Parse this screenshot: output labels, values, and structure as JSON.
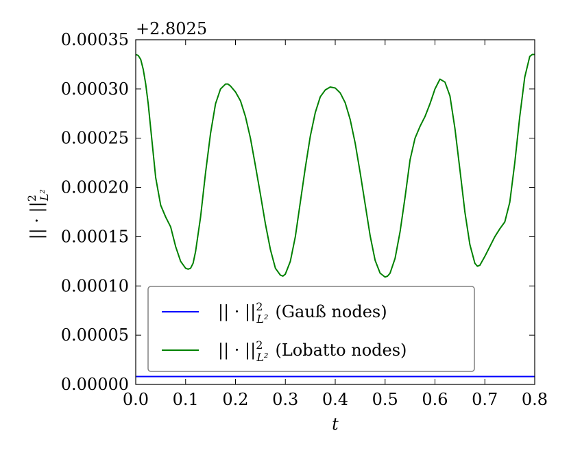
{
  "chart_data": {
    "type": "line",
    "title": "",
    "xlabel": "t",
    "ylabel": "||·||²_{L²}",
    "y_offset_label": "+2.8025",
    "xlim": [
      0.0,
      0.8
    ],
    "ylim": [
      0.0,
      0.00035
    ],
    "x_ticks": [
      0.0,
      0.1,
      0.2,
      0.3,
      0.4,
      0.5,
      0.6,
      0.7,
      0.8
    ],
    "x_tick_labels": [
      "0.0",
      "0.1",
      "0.2",
      "0.3",
      "0.4",
      "0.5",
      "0.6",
      "0.7",
      "0.8"
    ],
    "y_ticks": [
      0.0,
      5e-05,
      0.0001,
      0.00015,
      0.0002,
      0.00025,
      0.0003,
      0.00035
    ],
    "y_tick_labels": [
      "0.00000",
      "0.00005",
      "0.00010",
      "0.00015",
      "0.00020",
      "0.00025",
      "0.00030",
      "0.00035"
    ],
    "grid": false,
    "legend_position": "lower-center",
    "series": [
      {
        "name": "||·||²_{L²} (Gauß nodes)",
        "color": "#0000ff",
        "x": [
          0.0,
          0.1,
          0.2,
          0.3,
          0.4,
          0.5,
          0.6,
          0.7,
          0.8
        ],
        "y": [
          8e-06,
          8e-06,
          8e-06,
          8e-06,
          8e-06,
          8e-06,
          8e-06,
          8e-06,
          8e-06
        ]
      },
      {
        "name": "||·||²_{L²} (Lobatto nodes)",
        "color": "#008000",
        "x": [
          0.0,
          0.005,
          0.01,
          0.015,
          0.02,
          0.025,
          0.03,
          0.04,
          0.05,
          0.06,
          0.07,
          0.08,
          0.09,
          0.1,
          0.105,
          0.11,
          0.115,
          0.12,
          0.13,
          0.14,
          0.15,
          0.16,
          0.17,
          0.18,
          0.185,
          0.19,
          0.2,
          0.21,
          0.22,
          0.23,
          0.24,
          0.25,
          0.26,
          0.27,
          0.28,
          0.29,
          0.295,
          0.3,
          0.31,
          0.32,
          0.33,
          0.34,
          0.35,
          0.36,
          0.37,
          0.38,
          0.39,
          0.4,
          0.41,
          0.42,
          0.43,
          0.44,
          0.45,
          0.46,
          0.47,
          0.48,
          0.49,
          0.5,
          0.505,
          0.51,
          0.52,
          0.53,
          0.54,
          0.55,
          0.56,
          0.57,
          0.58,
          0.59,
          0.6,
          0.61,
          0.62,
          0.63,
          0.64,
          0.65,
          0.66,
          0.67,
          0.68,
          0.685,
          0.69,
          0.7,
          0.71,
          0.72,
          0.73,
          0.74,
          0.75,
          0.76,
          0.77,
          0.78,
          0.79,
          0.795,
          0.8
        ],
        "y": [
          0.000335,
          0.000334,
          0.00033,
          0.00032,
          0.000305,
          0.000285,
          0.00026,
          0.00021,
          0.000182,
          0.00017,
          0.00016,
          0.00014,
          0.000125,
          0.000118,
          0.000117,
          0.000118,
          0.000123,
          0.000135,
          0.00017,
          0.000215,
          0.000255,
          0.000285,
          0.0003,
          0.000305,
          0.000305,
          0.000303,
          0.000297,
          0.000288,
          0.000272,
          0.00025,
          0.000222,
          0.000193,
          0.000163,
          0.000137,
          0.000118,
          0.000111,
          0.00011,
          0.000112,
          0.000125,
          0.00015,
          0.000185,
          0.00022,
          0.000252,
          0.000276,
          0.000292,
          0.000299,
          0.000302,
          0.000301,
          0.000296,
          0.000286,
          0.000269,
          0.000245,
          0.000215,
          0.000183,
          0.000151,
          0.000126,
          0.000113,
          0.000109,
          0.00011,
          0.000113,
          0.000128,
          0.000155,
          0.00019,
          0.000228,
          0.00025,
          0.000262,
          0.000272,
          0.000285,
          0.0003,
          0.00031,
          0.000307,
          0.000293,
          0.00026,
          0.000218,
          0.000175,
          0.000142,
          0.000123,
          0.00012,
          0.000121,
          0.00013,
          0.00014,
          0.00015,
          0.000158,
          0.000165,
          0.000185,
          0.000225,
          0.000272,
          0.000312,
          0.000333,
          0.000335,
          0.000335
        ]
      }
    ]
  }
}
